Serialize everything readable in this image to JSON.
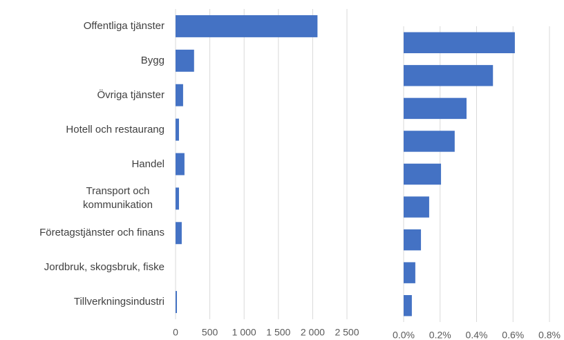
{
  "chart_data": [
    {
      "type": "barh",
      "categories": [
        "Offentliga tjänster",
        "Bygg",
        "Övriga tjänster",
        "Hotell och restaurang",
        "Handel",
        "Transport och kommunikation",
        "Företagstjänster och finans",
        "Jordbruk, skogsbruk, fiske",
        "Tillverkningsindustri"
      ],
      "values": [
        2070,
        270,
        110,
        50,
        130,
        50,
        90,
        0,
        20
      ],
      "color": "#4472c4",
      "xlim": [
        0,
        2500
      ],
      "xticks": [
        0,
        500,
        {
          "value": 1000,
          "label": "1 000"
        },
        {
          "value": 1500,
          "label": "1 500"
        },
        {
          "value": 2000,
          "label": "2 000"
        },
        {
          "value": 2500,
          "label": "2 500"
        }
      ],
      "grid": true
    },
    {
      "type": "barh",
      "categories": [
        null,
        null,
        null,
        null,
        null,
        null,
        null,
        null,
        null
      ],
      "values": [
        0.61,
        0.49,
        0.345,
        0.28,
        0.205,
        0.14,
        0.095,
        0.064,
        0.045
      ],
      "color": "#4472c4",
      "xlim": [
        0,
        0.8
      ],
      "xticks": [
        {
          "value": 0,
          "label": "0.0%"
        },
        {
          "value": 0.2,
          "label": "0.2%"
        },
        {
          "value": 0.4,
          "label": "0.4%"
        },
        {
          "value": 0.6,
          "label": "0.6%"
        },
        {
          "value": 0.8,
          "label": "0.8%"
        }
      ],
      "grid": true
    }
  ]
}
